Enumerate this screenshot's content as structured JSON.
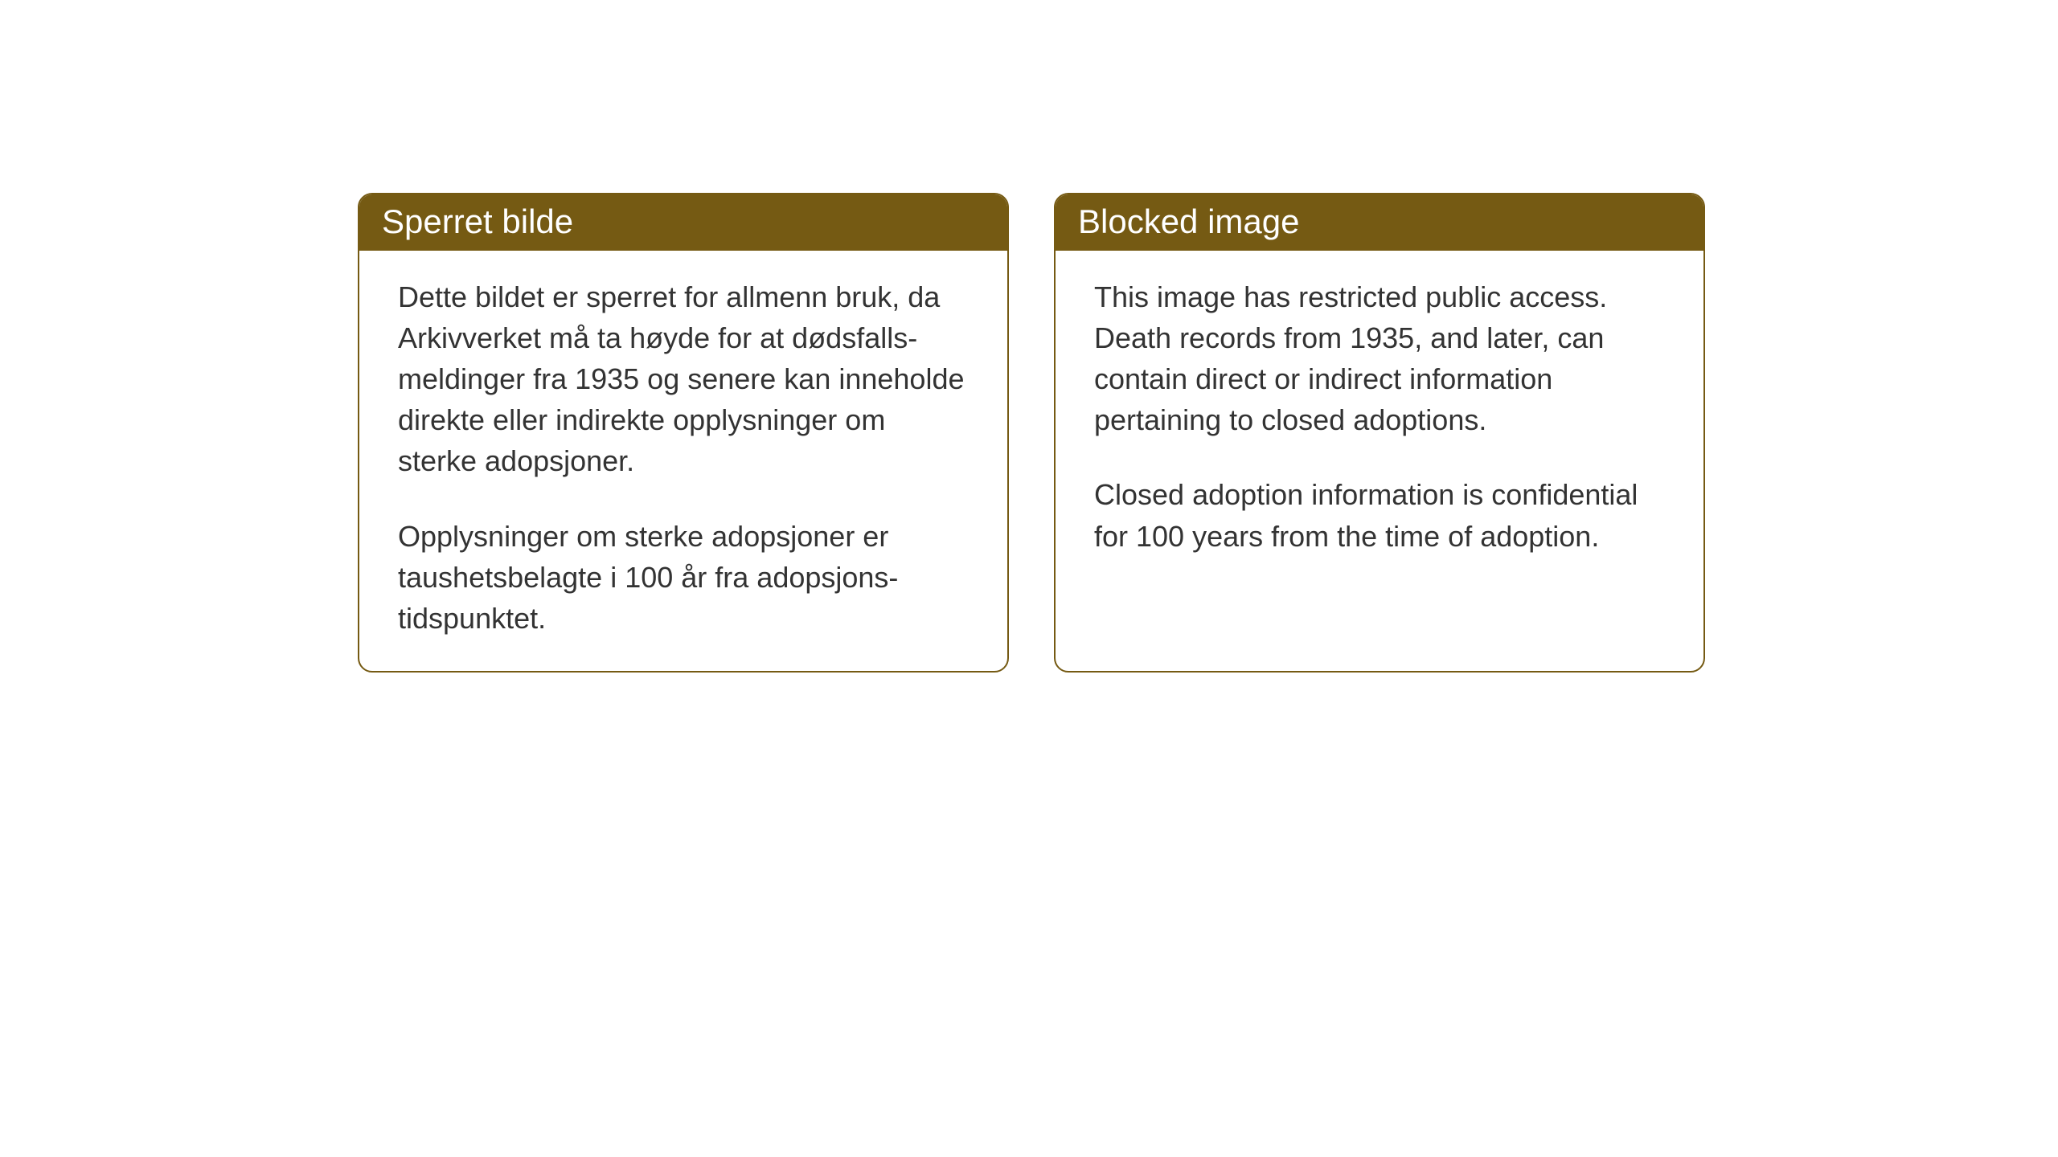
{
  "layout": {
    "background_color": "#ffffff",
    "card_border_color": "#755a13",
    "card_header_bg": "#755a13",
    "card_header_text_color": "#ffffff",
    "card_body_text_color": "#333333",
    "card_border_radius": 18,
    "header_font_size": 42,
    "body_font_size": 36
  },
  "cards": {
    "norwegian": {
      "title": "Sperret bilde",
      "paragraph1": "Dette bildet er sperret for allmenn bruk, da Arkivverket må ta høyde for at dødsfalls-meldinger fra 1935 og senere kan inneholde direkte eller indirekte opplysninger om sterke adopsjoner.",
      "paragraph2": "Opplysninger om sterke adopsjoner er taushetsbelagte i 100 år fra adopsjons-tidspunktet."
    },
    "english": {
      "title": "Blocked image",
      "paragraph1": "This image has restricted public access. Death records from 1935, and later, can contain direct or indirect information pertaining to closed adoptions.",
      "paragraph2": "Closed adoption information is confidential for 100 years from the time of adoption."
    }
  }
}
